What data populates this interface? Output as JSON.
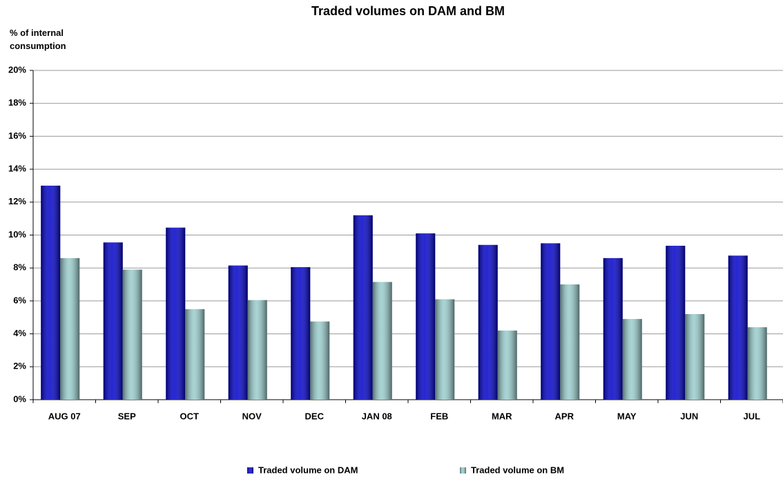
{
  "chart_data": {
    "type": "bar",
    "title": "Traded volumes on DAM and BM",
    "y_label": "% of internal consumption",
    "categories": [
      "AUG 07",
      "SEP",
      "OCT",
      "NOV",
      "DEC",
      "JAN 08",
      "FEB",
      "MAR",
      "APR",
      "MAY",
      "JUN",
      "JUL"
    ],
    "series": [
      {
        "name": "Traded volume on DAM",
        "color": "#0000cc",
        "values": [
          13.0,
          9.55,
          10.45,
          8.15,
          8.05,
          11.2,
          10.1,
          9.4,
          9.5,
          8.6,
          9.35,
          8.75
        ]
      },
      {
        "name": "Traded volume on BM",
        "color": "#99cccc",
        "values": [
          8.6,
          7.9,
          5.5,
          6.05,
          4.75,
          7.15,
          6.1,
          4.2,
          7.0,
          4.9,
          5.2,
          4.4
        ]
      }
    ],
    "ylim": [
      0,
      20
    ],
    "yticks": [
      {
        "value": 0,
        "label": "0%"
      },
      {
        "value": 2,
        "label": "2%"
      },
      {
        "value": 4,
        "label": "4%"
      },
      {
        "value": 6,
        "label": "6%"
      },
      {
        "value": 8,
        "label": "8%"
      },
      {
        "value": 10,
        "label": "10%"
      },
      {
        "value": 12,
        "label": "12%"
      },
      {
        "value": 14,
        "label": "14%"
      },
      {
        "value": 16,
        "label": "16%"
      },
      {
        "value": 18,
        "label": "18%"
      },
      {
        "value": 20,
        "label": "20%"
      }
    ],
    "grid": true
  }
}
